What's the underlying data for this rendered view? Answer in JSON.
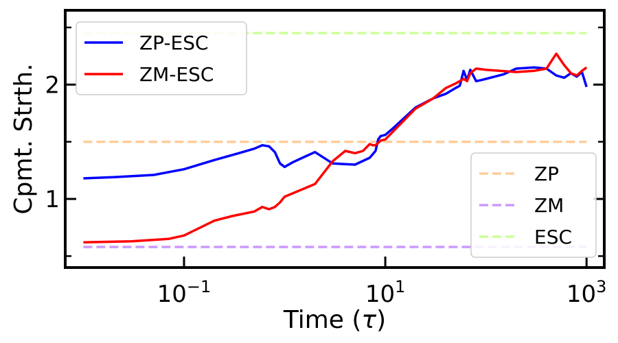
{
  "chart_data": {
    "type": "line",
    "xscale": "log",
    "xlim": [
      0.0066,
      1500
    ],
    "ylim": [
      0.4,
      2.65
    ],
    "xlabel": "Time (τ)",
    "ylabel": "Cpmt. Strth.",
    "xticks": [
      {
        "value": 0.1,
        "base": "10",
        "exp": "−1"
      },
      {
        "value": 10,
        "base": "10",
        "exp": "1"
      },
      {
        "value": 1000,
        "base": "10",
        "exp": "3"
      }
    ],
    "yticks": [
      {
        "value": 1,
        "label": "1"
      },
      {
        "value": 2,
        "label": "2"
      }
    ],
    "yminor_ticks": [
      0.5,
      1.5,
      2.5
    ],
    "grid": false,
    "series": [
      {
        "name": "ZP-ESC",
        "color": "#0000ff",
        "style": "solid",
        "x": [
          0.01,
          0.02,
          0.05,
          0.1,
          0.2,
          0.35,
          0.5,
          0.6,
          0.7,
          0.8,
          0.9,
          1.0,
          1.2,
          1.5,
          2.0,
          3.0,
          5.0,
          7.0,
          8.0,
          8.5,
          9.0,
          10,
          12,
          20,
          30,
          40,
          50,
          55,
          60,
          65,
          70,
          80,
          90,
          100,
          150,
          200,
          300,
          400,
          500,
          600,
          700,
          800,
          900,
          1000
        ],
        "y": [
          1.18,
          1.19,
          1.21,
          1.26,
          1.34,
          1.4,
          1.44,
          1.47,
          1.46,
          1.41,
          1.31,
          1.28,
          1.32,
          1.36,
          1.41,
          1.31,
          1.3,
          1.36,
          1.42,
          1.52,
          1.55,
          1.56,
          1.62,
          1.8,
          1.88,
          1.92,
          1.97,
          1.99,
          2.12,
          2.04,
          2.13,
          2.03,
          2.04,
          2.05,
          2.09,
          2.14,
          2.15,
          2.14,
          2.08,
          2.06,
          2.1,
          2.07,
          2.11,
          1.98
        ]
      },
      {
        "name": "ZM-ESC",
        "color": "#ff0000",
        "style": "solid",
        "x": [
          0.01,
          0.03,
          0.07,
          0.1,
          0.2,
          0.3,
          0.5,
          0.6,
          0.7,
          0.8,
          0.9,
          1.0,
          2.0,
          3.0,
          4.0,
          5.0,
          6.0,
          7.0,
          7.5,
          8.0,
          9.0,
          10,
          20,
          30,
          40,
          50,
          60,
          65,
          70,
          75,
          80,
          100,
          200,
          300,
          400,
          500,
          600,
          700,
          800,
          900,
          1000
        ],
        "y": [
          0.62,
          0.63,
          0.65,
          0.68,
          0.81,
          0.85,
          0.89,
          0.93,
          0.91,
          0.93,
          0.97,
          1.02,
          1.13,
          1.33,
          1.42,
          1.4,
          1.42,
          1.48,
          1.47,
          1.47,
          1.51,
          1.52,
          1.79,
          1.88,
          1.97,
          2.01,
          2.05,
          2.03,
          2.1,
          2.12,
          2.14,
          2.13,
          2.11,
          2.12,
          2.14,
          2.27,
          2.17,
          2.1,
          2.08,
          2.12,
          2.15
        ]
      },
      {
        "name": "ZP",
        "color": "#ffcc99",
        "style": "dashed",
        "x": [
          0.01,
          1000
        ],
        "y": [
          1.5,
          1.5
        ]
      },
      {
        "name": "ZM",
        "color": "#cc99ff",
        "style": "dashed",
        "x": [
          0.01,
          1000
        ],
        "y": [
          0.58,
          0.58
        ]
      },
      {
        "name": "ESC",
        "color": "#ccff99",
        "style": "dashed",
        "x": [
          0.01,
          1000
        ],
        "y": [
          2.45,
          2.45
        ]
      }
    ],
    "legends": [
      {
        "placement": "upper-left",
        "entries": [
          "ZP-ESC",
          "ZM-ESC"
        ]
      },
      {
        "placement": "lower-right",
        "entries": [
          "ZP",
          "ZM",
          "ESC"
        ]
      }
    ]
  }
}
